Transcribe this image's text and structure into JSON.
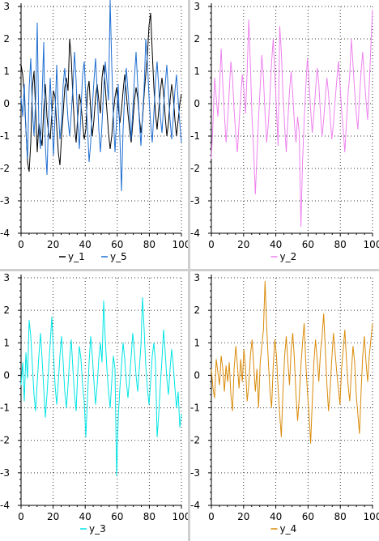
{
  "chart_data": [
    {
      "type": "line",
      "xlim": [
        0,
        100
      ],
      "ylim": [
        -4,
        3
      ],
      "xticks": [
        0,
        20,
        40,
        60,
        80,
        100
      ],
      "yticks": [
        -4,
        -3,
        -2,
        -1,
        0,
        1,
        2,
        3
      ],
      "grid": true,
      "legend_position": "bottom",
      "series": [
        {
          "name": "y_1",
          "color": "#000000",
          "values": [
            1.2,
            0.9,
            0.3,
            -0.8,
            -1.8,
            -2.1,
            -1.2,
            0.5,
            1.0,
            -0.2,
            -1.5,
            -0.6,
            -1.0,
            -1.3,
            -0.2,
            0.6,
            -0.4,
            -0.9,
            -1.1,
            -0.3,
            0.4,
            0.2,
            -0.7,
            -1.5,
            -1.9,
            -1.0,
            -0.3,
            0.5,
            0.8,
            0.4,
            2.0,
            1.4,
            0.2,
            -0.7,
            -1.2,
            -0.4,
            0.3,
            0.0,
            -0.6,
            -1.1,
            -0.8,
            0.4,
            0.7,
            -0.2,
            -1.0,
            -0.5,
            0.2,
            0.6,
            0.1,
            -0.3,
            0.8,
            1.2,
            0.5,
            -0.2,
            -0.9,
            -1.4,
            -1.0,
            -0.3,
            0.2,
            0.5,
            -0.1,
            -0.6,
            -0.2,
            0.4,
            0.9,
            0.3,
            -0.3,
            -0.8,
            -1.2,
            -0.6,
            0.1,
            0.5,
            0.2,
            -0.4,
            -0.9,
            -0.5,
            0.3,
            0.9,
            1.5,
            2.4,
            2.8,
            1.6,
            0.5,
            -0.3,
            -0.8,
            -0.2,
            0.4,
            0.8,
            0.3,
            -0.4,
            -1.0,
            -0.6,
            0.1,
            0.6,
            0.2,
            -0.5,
            -1.0,
            -0.5,
            0.0,
            0.3
          ]
        },
        {
          "name": "y_5",
          "color": "#1f6fd1",
          "values": [
            0.2,
            -0.4,
            0.6,
            -0.8,
            -1.7,
            0.5,
            1.4,
            -0.2,
            -1.0,
            0.1,
            2.5,
            -0.8,
            -1.4,
            0.2,
            1.9,
            -1.3,
            -2.2,
            -0.5,
            0.8,
            -0.3,
            -1.6,
            -0.4,
            1.2,
            -0.2,
            -1.1,
            -0.6,
            0.6,
            1.1,
            0.3,
            -0.5,
            -1.0,
            -0.3,
            0.5,
            1.6,
            0.7,
            -0.6,
            -1.4,
            -0.2,
            0.9,
            1.3,
            0.2,
            -0.7,
            -1.8,
            -1.2,
            -0.1,
            0.7,
            1.4,
            0.4,
            -0.8,
            -1.5,
            -0.6,
            0.4,
            1.3,
            0.7,
            0.1,
            3.2,
            1.2,
            -0.4,
            -1.5,
            -0.5,
            0.6,
            -1.0,
            -2.7,
            -0.8,
            0.3,
            1.1,
            0.4,
            -0.3,
            -1.1,
            -0.2,
            0.8,
            1.6,
            0.6,
            -0.5,
            -1.3,
            -0.4,
            0.5,
            2.0,
            1.3,
            0.2,
            -0.6,
            -1.2,
            -0.3,
            0.7,
            1.3,
            0.5,
            -0.4,
            -0.9,
            -0.1,
            0.6,
            1.2,
            0.3,
            -0.5,
            -1.1,
            -0.4,
            0.4,
            0.9,
            0.1,
            -0.6,
            -1.2
          ]
        }
      ]
    },
    {
      "type": "line",
      "xlim": [
        0,
        100
      ],
      "ylim": [
        -4,
        3
      ],
      "xticks": [
        0,
        20,
        40,
        60,
        80,
        100
      ],
      "yticks": [
        -4,
        -3,
        -2,
        -1,
        0,
        1,
        2,
        3
      ],
      "grid": true,
      "legend_position": "bottom",
      "series": [
        {
          "name": "y_2",
          "color": "#ee82ee",
          "values": [
            -1.7,
            -0.6,
            0.8,
            0.2,
            -0.4,
            0.5,
            1.7,
            0.6,
            -0.3,
            -1.2,
            -0.5,
            0.4,
            1.3,
            0.8,
            -0.2,
            -1.0,
            -1.5,
            -0.6,
            0.2,
            0.9,
            0.4,
            -0.3,
            1.0,
            2.6,
            1.2,
            -0.5,
            -1.5,
            -2.8,
            -1.6,
            -0.4,
            0.5,
            1.5,
            0.8,
            -0.3,
            -1.2,
            -0.6,
            0.3,
            1.3,
            2.0,
            0.9,
            -0.2,
            -1.3,
            2.4,
            1.6,
            0.3,
            -0.7,
            -1.5,
            -0.5,
            0.4,
            1.0,
            0.3,
            -0.6,
            -1.2,
            -0.4,
            -0.9,
            -3.8,
            -1.8,
            -0.5,
            0.5,
            1.4,
            0.7,
            -0.2,
            -0.9,
            -0.3,
            0.4,
            1.1,
            0.6,
            -0.3,
            -1.0,
            -0.5,
            0.2,
            0.8,
            0.3,
            -0.4,
            -1.1,
            -0.6,
            0.1,
            0.7,
            1.3,
            0.6,
            -0.2,
            -0.8,
            -1.5,
            -0.6,
            0.3,
            0.9,
            2.0,
            1.2,
            0.4,
            -0.3,
            -0.8,
            0.2,
            1.0,
            1.6,
            0.8,
            0.1,
            -0.5,
            0.6,
            1.8,
            2.9
          ]
        }
      ]
    },
    {
      "type": "line",
      "xlim": [
        0,
        100
      ],
      "ylim": [
        -4,
        3
      ],
      "xticks": [
        0,
        20,
        40,
        60,
        80,
        100
      ],
      "yticks": [
        -4,
        -3,
        -2,
        -1,
        0,
        1,
        2,
        3
      ],
      "grid": true,
      "legend_position": "bottom",
      "series": [
        {
          "name": "y_3",
          "color": "#00e5e5",
          "values": [
            -0.3,
            0.4,
            -0.8,
            0.7,
            -0.1,
            1.7,
            1.2,
            0.3,
            -0.6,
            -1.1,
            -0.2,
            0.6,
            1.3,
            0.5,
            -0.4,
            -1.3,
            -0.6,
            0.2,
            1.0,
            1.8,
            0.7,
            -0.3,
            -0.9,
            -0.2,
            0.6,
            1.2,
            0.4,
            -0.5,
            -1.0,
            -0.3,
            0.5,
            1.1,
            0.2,
            -0.6,
            -1.1,
            0.1,
            0.9,
            0.5,
            -0.3,
            -0.8,
            -1.9,
            -0.7,
            0.4,
            1.2,
            0.6,
            -0.2,
            -0.9,
            -0.3,
            0.5,
            1.0,
            0.4,
            2.3,
            1.1,
            0.2,
            -0.5,
            -1.0,
            -0.2,
            0.6,
            0.2,
            -3.1,
            -1.3,
            -0.4,
            0.3,
            1.0,
            0.5,
            -0.2,
            -0.7,
            -0.1,
            0.6,
            1.3,
            0.7,
            0.0,
            -0.5,
            0.2,
            0.9,
            2.4,
            1.4,
            0.3,
            -0.4,
            -0.9,
            -0.2,
            0.6,
            1.0,
            0.4,
            -1.9,
            -1.2,
            -0.3,
            0.5,
            1.4,
            0.7,
            -0.1,
            -0.6,
            0.2,
            0.8,
            0.3,
            -0.4,
            -1.0,
            -0.5,
            -1.6,
            -1.2
          ]
        }
      ]
    },
    {
      "type": "line",
      "xlim": [
        0,
        100
      ],
      "ylim": [
        -4,
        3
      ],
      "xticks": [
        0,
        20,
        40,
        60,
        80,
        100
      ],
      "yticks": [
        -4,
        -3,
        -2,
        -1,
        0,
        1,
        2,
        3
      ],
      "grid": true,
      "legend_position": "bottom",
      "series": [
        {
          "name": "y_4",
          "color": "#d98b0a",
          "values": [
            0.2,
            -0.4,
            -0.7,
            0.5,
            0.1,
            -0.3,
            0.6,
            0.2,
            -0.5,
            0.3,
            -0.2,
            0.4,
            -0.6,
            -1.1,
            0.2,
            0.9,
            0.3,
            -0.4,
            0.5,
            -0.2,
            0.8,
            0.2,
            -0.8,
            -0.3,
            0.6,
            1.1,
            0.3,
            -0.5,
            0.2,
            -1.0,
            0.4,
            0.9,
            1.4,
            2.9,
            1.5,
            0.4,
            -0.5,
            -1.0,
            0.3,
            1.1,
            0.6,
            -0.4,
            -1.2,
            -1.9,
            -0.5,
            0.6,
            1.2,
            0.4,
            -0.3,
            0.8,
            1.3,
            0.5,
            -0.6,
            -1.4,
            -0.7,
            0.3,
            1.0,
            1.6,
            0.4,
            -0.5,
            -1.2,
            -2.1,
            -0.8,
            0.4,
            1.1,
            0.5,
            -0.2,
            0.7,
            1.2,
            1.9,
            0.8,
            -0.3,
            -1.1,
            -0.4,
            0.5,
            1.3,
            0.7,
            0.1,
            -0.4,
            -0.9,
            0.2,
            0.8,
            1.4,
            0.5,
            -0.3,
            -0.8,
            0.1,
            0.9,
            0.4,
            -0.6,
            -1.2,
            -1.8,
            -0.5,
            0.6,
            1.2,
            0.4,
            -0.2,
            0.6,
            1.1,
            1.6
          ]
        }
      ]
    }
  ]
}
